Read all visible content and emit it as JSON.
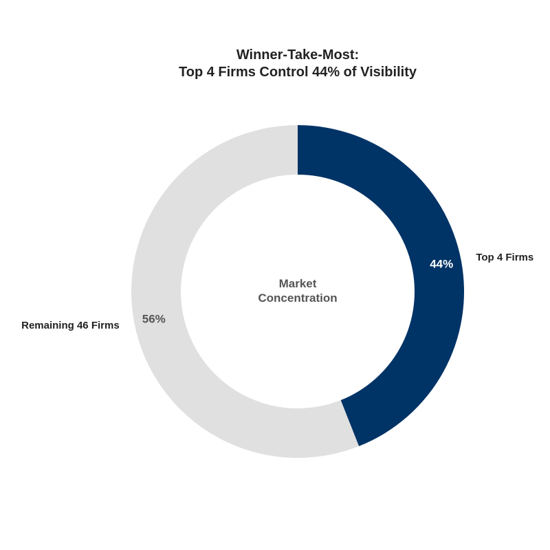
{
  "chart_data": {
    "type": "pie",
    "variant": "donut",
    "title_lines": [
      "Winner-Take-Most:",
      "Top 4 Firms Control 44% of Visibility"
    ],
    "center_label_lines": [
      "Market",
      "Concentration"
    ],
    "slices": [
      {
        "label": "Top 4 Firms",
        "value": 44,
        "display": "44%",
        "color": "#003366",
        "pct_color": "#ffffff"
      },
      {
        "label": "Remaining 46 Firms",
        "value": 56,
        "display": "56%",
        "color": "#e0e0e0",
        "pct_color": "#555555"
      }
    ],
    "start": "12 o'clock",
    "direction": "clockwise",
    "legend": "none"
  }
}
